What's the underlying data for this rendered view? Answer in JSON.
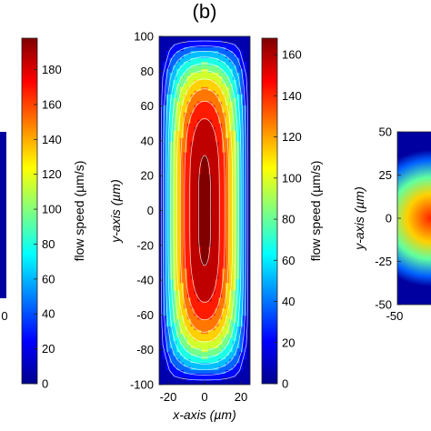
{
  "panel_label": "(b)",
  "left_partial": {
    "colorbar_ticks": [
      "180",
      "160",
      "140",
      "120",
      "100",
      "80",
      "60",
      "40",
      "20",
      "0"
    ],
    "colorbar_label": "flow speed (µm/s)",
    "x_tick_label": "0"
  },
  "chart_data": {
    "type": "heatmap",
    "title": "",
    "xlabel": "x-axis (µm)",
    "ylabel": "y-axis (µm)",
    "x_ticks": [
      "-20",
      "0",
      "20"
    ],
    "y_ticks": [
      "100",
      "80",
      "60",
      "40",
      "20",
      "0",
      "-20",
      "-40",
      "-60",
      "-80",
      "-100"
    ],
    "xlim": [
      -25,
      25
    ],
    "ylim": [
      -100,
      100
    ],
    "colorbar": {
      "label": "flow speed (µm/s)",
      "range": [
        0,
        168
      ],
      "ticks": [
        "160",
        "140",
        "120",
        "100",
        "80",
        "60",
        "40",
        "20",
        "0"
      ]
    },
    "peak_value": 168,
    "contour_levels": [
      15,
      30,
      45,
      60,
      75,
      90,
      105,
      120,
      135,
      150,
      165
    ],
    "colormap": "jet"
  },
  "right_partial": {
    "ylabel": "y-axis (µm)",
    "y_ticks": [
      "50",
      "25",
      "0",
      "-25",
      "-50"
    ],
    "x_tick_label": "-50"
  }
}
